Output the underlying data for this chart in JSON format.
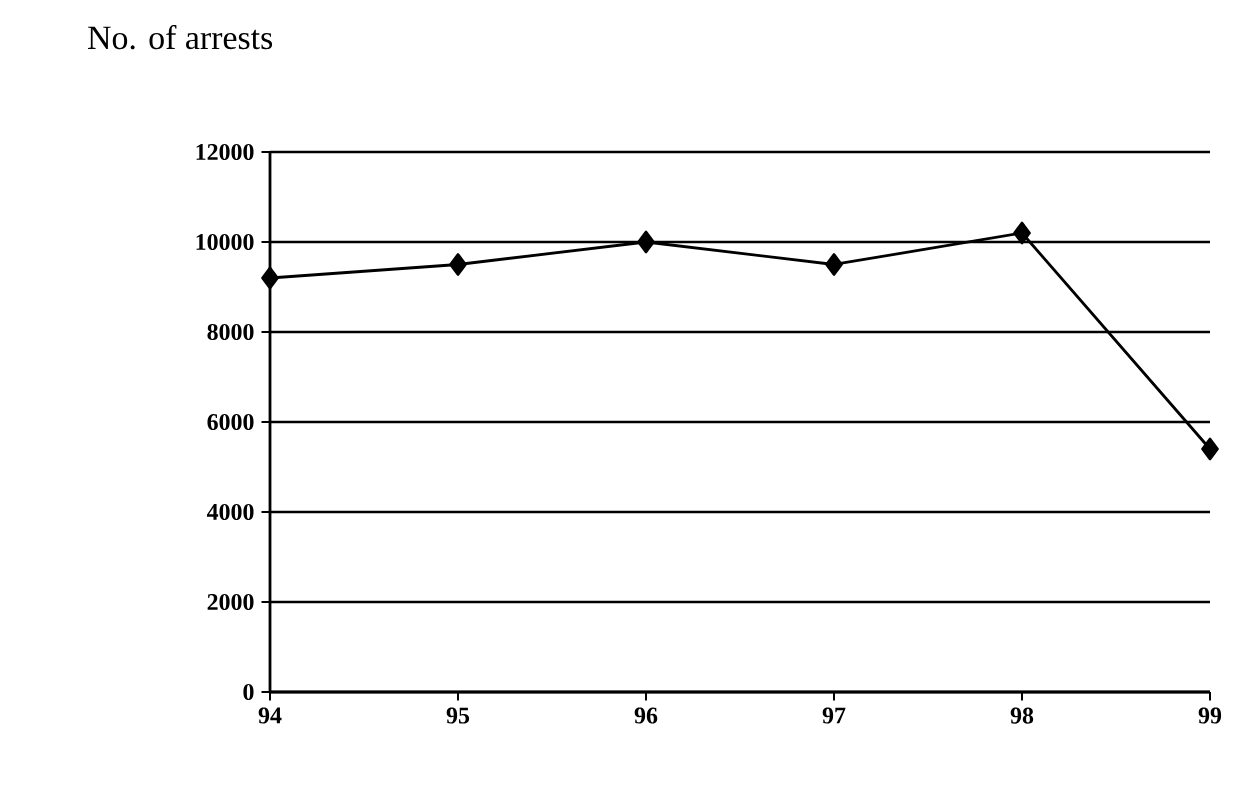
{
  "chart_data": {
    "type": "line",
    "title": "No. of arrests",
    "x": [
      94,
      95,
      96,
      97,
      98,
      99
    ],
    "xlim": [
      94,
      99
    ],
    "xticks": [
      94,
      95,
      96,
      97,
      98,
      99
    ],
    "series": [
      {
        "color": "#000000",
        "values": [
          9200,
          9500,
          10000,
          9500,
          10200,
          5400
        ]
      }
    ],
    "ylim": [
      0,
      12000
    ],
    "yticks": [
      0,
      2000,
      4000,
      6000,
      8000,
      10000,
      12000
    ],
    "grid": "y",
    "marker": "diamond",
    "line_style": "solid"
  }
}
